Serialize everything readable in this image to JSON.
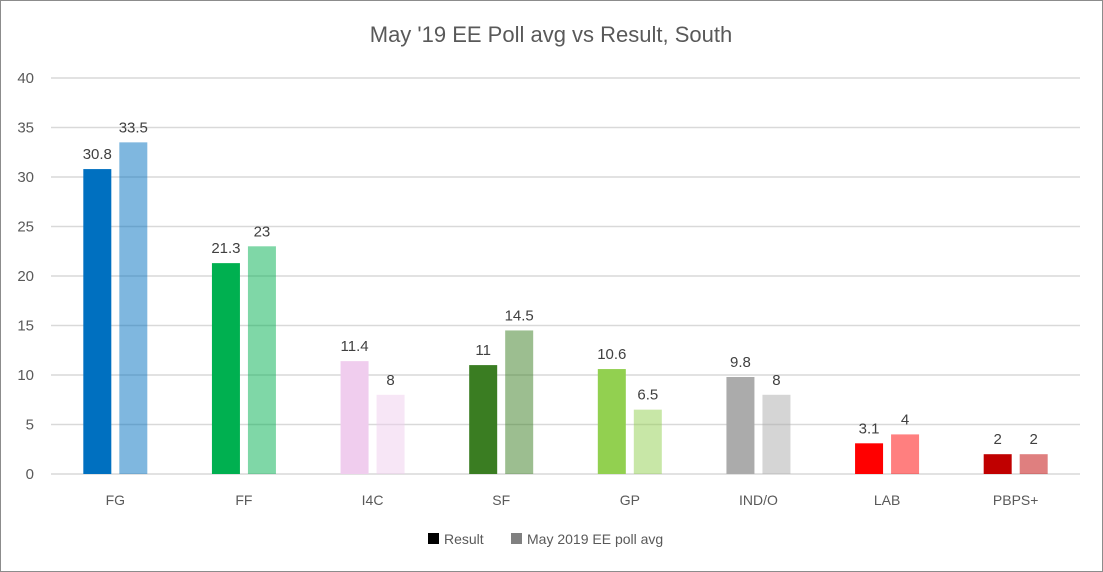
{
  "chart_data": {
    "type": "bar",
    "title": "May '19 EE Poll avg vs Result, South",
    "xlabel": "",
    "ylabel": "",
    "ylim": [
      0,
      40
    ],
    "yticks": [
      0,
      5,
      10,
      15,
      20,
      25,
      30,
      35,
      40
    ],
    "grid": true,
    "legend_position": "bottom",
    "categories": [
      "FG",
      "FF",
      "I4C",
      "SF",
      "GP",
      "IND/O",
      "LAB",
      "PBPS+"
    ],
    "series": [
      {
        "name": "Result",
        "values": [
          30.8,
          21.3,
          11.4,
          11,
          10.6,
          9.8,
          3.1,
          2
        ],
        "legend_color": "#000000"
      },
      {
        "name": "May 2019 EE poll avg",
        "values": [
          33.5,
          23,
          8,
          14.5,
          6.5,
          8,
          4,
          2
        ],
        "legend_color": "#808080"
      }
    ],
    "category_colors": [
      "#0070C0",
      "#00B050",
      "#F0CDEE",
      "#3A7D22",
      "#92D050",
      "#ABABAB",
      "#FF0000",
      "#C00000"
    ]
  }
}
